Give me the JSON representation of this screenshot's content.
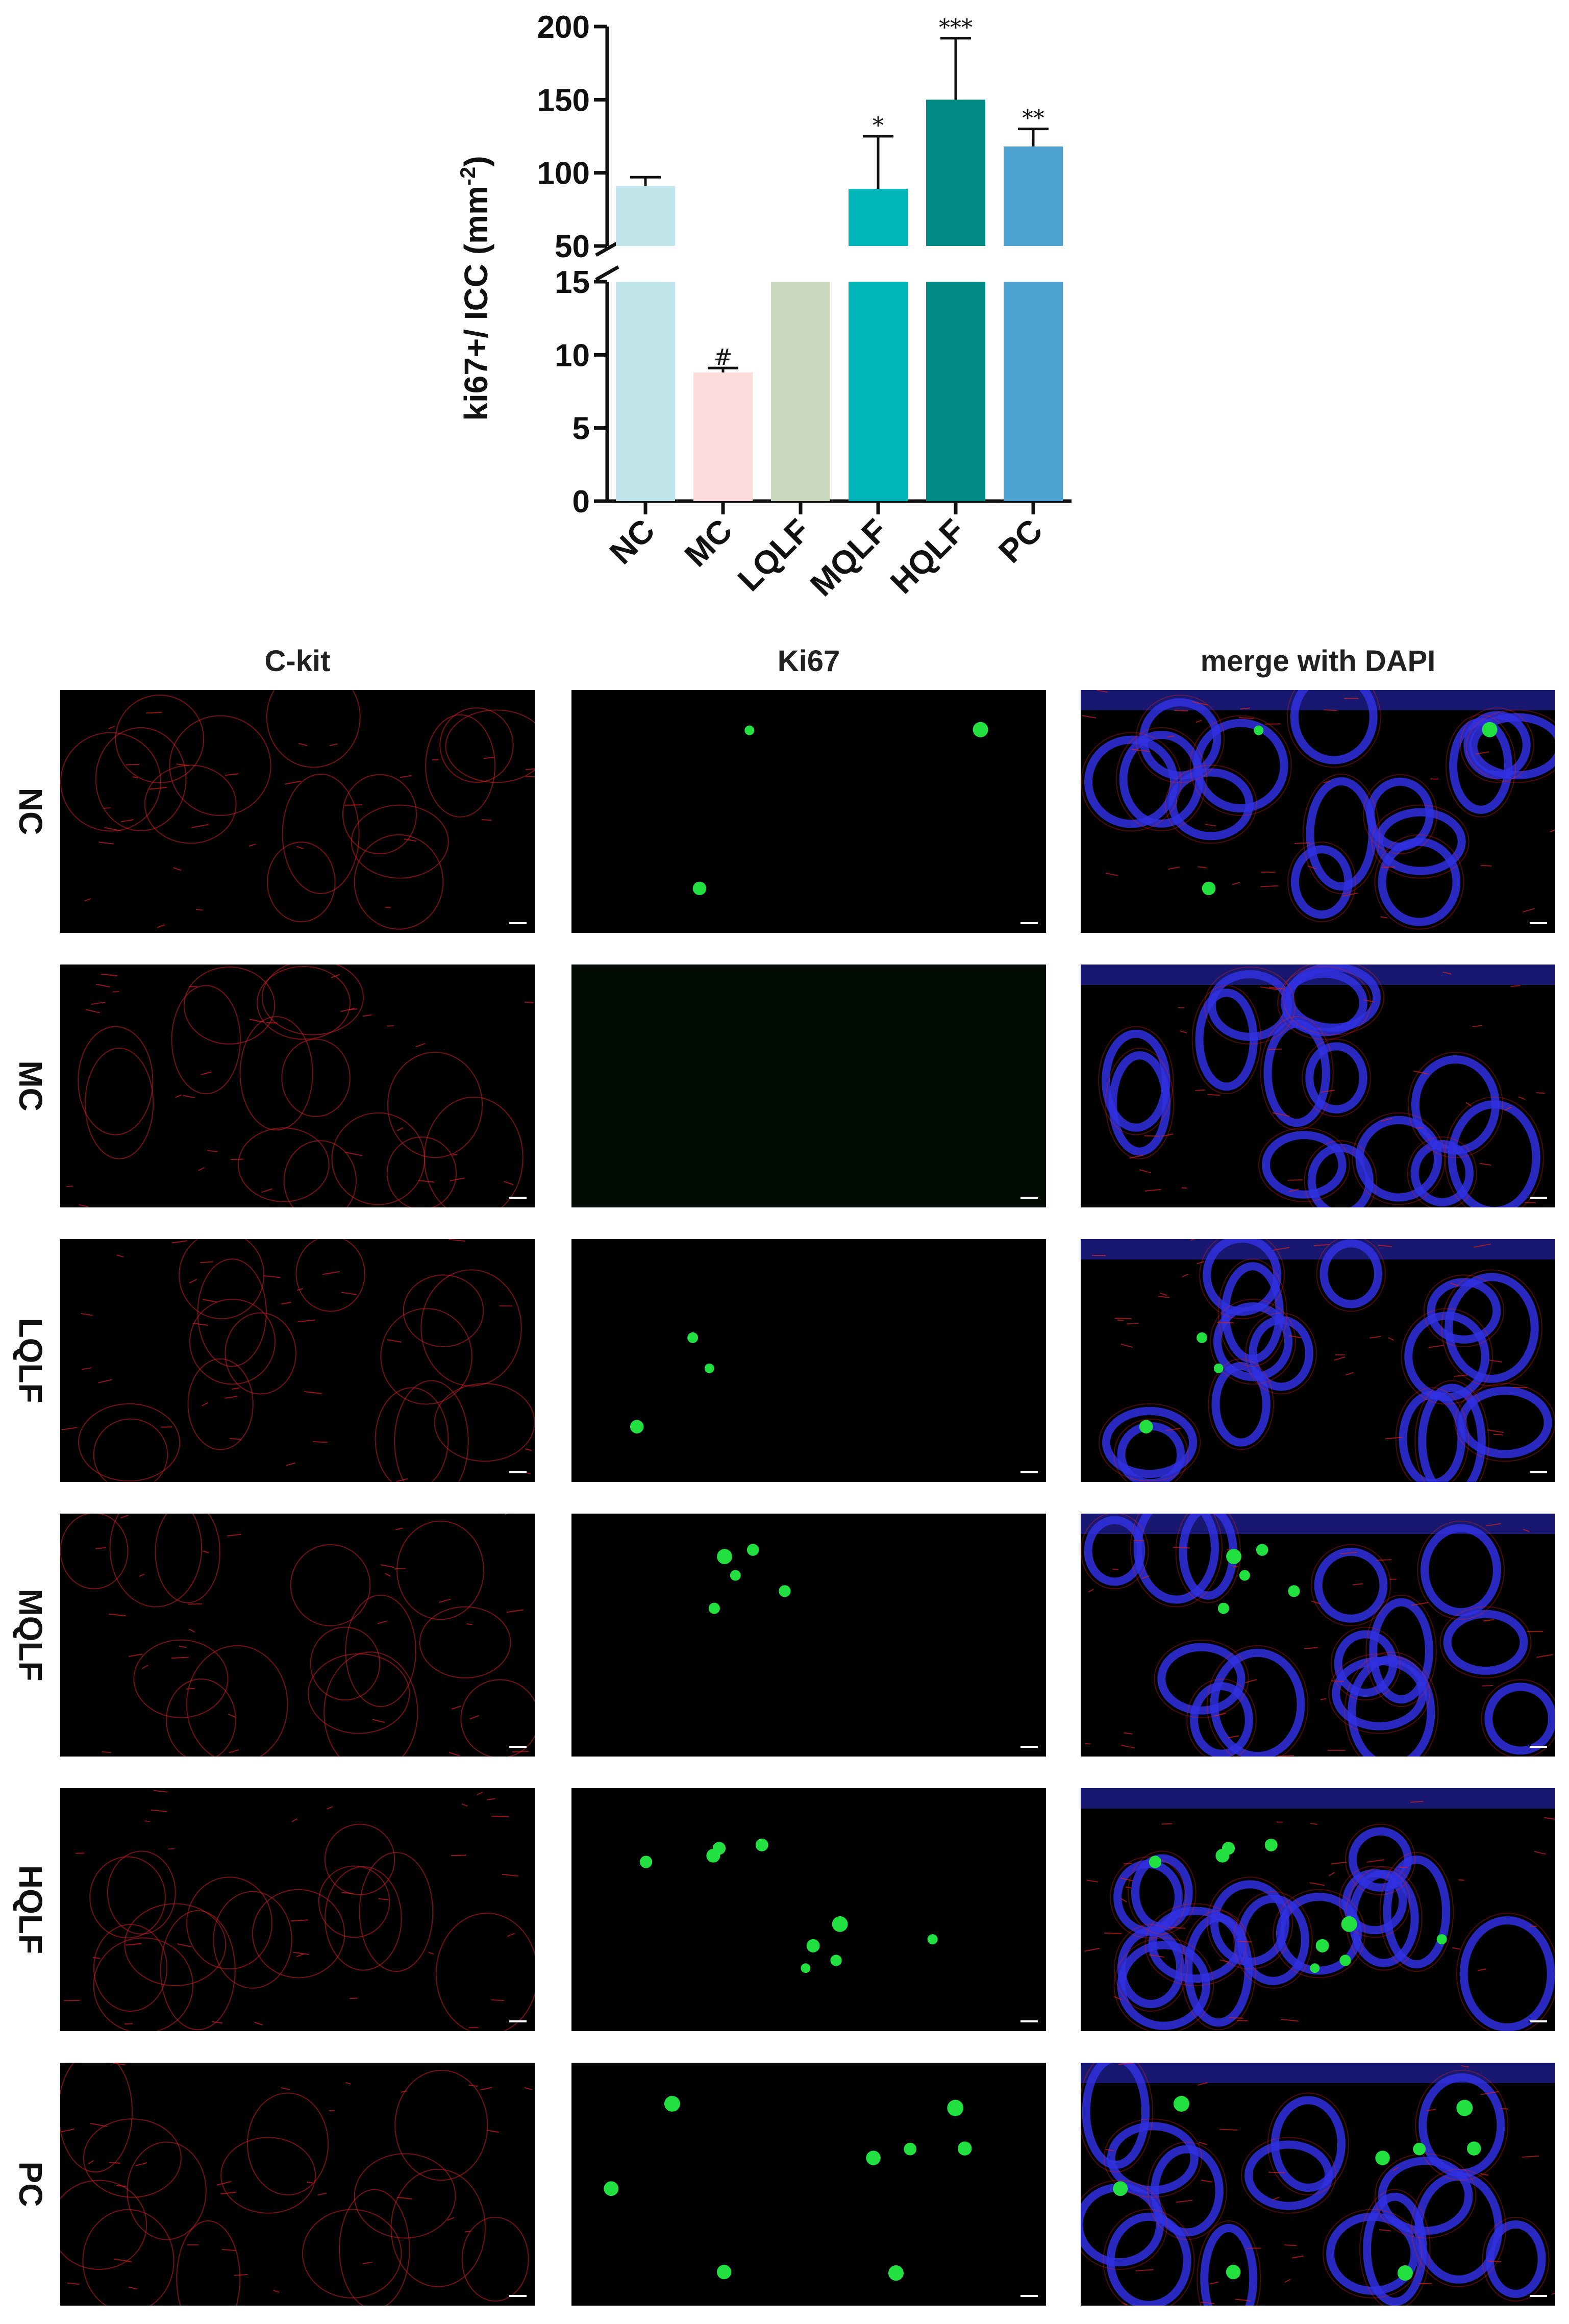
{
  "chart_data": {
    "type": "bar",
    "categories": [
      "NC",
      "MC",
      "LQLF",
      "MQLF",
      "HQLF",
      "PC"
    ],
    "values": [
      91,
      8.8,
      15,
      89,
      150,
      118
    ],
    "errors": [
      6,
      0.3,
      0,
      36,
      42,
      12
    ],
    "significance": [
      "",
      "#",
      "",
      "*",
      "***",
      "**"
    ],
    "colors": [
      "#c0e6ec",
      "#fcdcda",
      "#cad8be",
      "#00b5b8",
      "#008b87",
      "#4fa3d1"
    ],
    "ylabel": "ki67+/ ICC (mm",
    "ylabel_sup": "-2",
    "ylabel_close": ")",
    "axis_break": {
      "lower": [
        0,
        15
      ],
      "upper": [
        50,
        200
      ]
    },
    "y_ticks_lower": [
      0,
      5,
      10,
      15
    ],
    "y_ticks_upper": [
      50,
      100,
      150,
      200
    ]
  },
  "figure": {
    "column_headers": [
      "C-kit",
      "Ki67",
      "merge with DAPI"
    ],
    "row_labels": [
      "NC",
      "MC",
      "LQLF",
      "MQLF",
      "HQLF",
      "PC"
    ],
    "ki67_cell_counts": [
      3,
      0,
      3,
      5,
      9,
      8
    ],
    "channel_colors": {
      "ckit": "#d22222",
      "ki67": "#22e040",
      "dapi": "#3030e0"
    }
  }
}
